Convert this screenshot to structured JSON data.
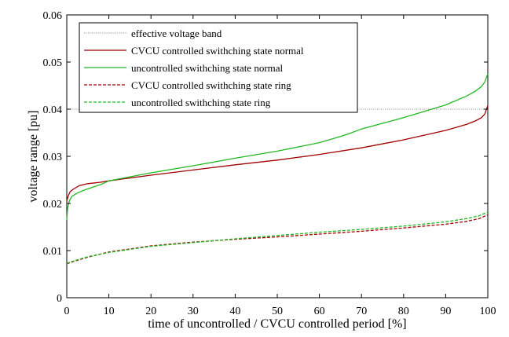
{
  "chart_data": {
    "type": "line",
    "title": "",
    "xlabel": "time of uncontrolled / CVCU controlled period [%]",
    "ylabel": "voltage range [pu]",
    "xlim": [
      0,
      100
    ],
    "ylim": [
      0,
      0.06
    ],
    "xticks": [
      0,
      10,
      20,
      30,
      40,
      50,
      60,
      70,
      80,
      90,
      100
    ],
    "xtick_labels": [
      "0",
      "10",
      "20",
      "30",
      "40",
      "50",
      "60",
      "70",
      "80",
      "90",
      "100"
    ],
    "yticks": [
      0,
      0.01,
      0.02,
      0.03,
      0.04,
      0.05,
      0.06
    ],
    "ytick_labels": [
      "0",
      "0.01",
      "0.02",
      "0.03",
      "0.04",
      "0.05",
      "0.06"
    ],
    "grid": false,
    "legend_position": "top-left",
    "series": [
      {
        "name": "effective voltage band",
        "color": "#7f7f7f",
        "dash": "dotted",
        "x": [
          0,
          100
        ],
        "y": [
          0.04,
          0.04
        ]
      },
      {
        "name": "CVCU controlled swithching state normal",
        "color": "#a00000",
        "dash": "solid",
        "x": [
          0,
          0.3,
          0.8,
          1.5,
          3,
          5,
          8,
          10,
          20,
          30,
          40,
          50,
          60,
          70,
          80,
          90,
          95,
          97,
          98.5,
          99.3,
          100
        ],
        "y": [
          0.0205,
          0.0215,
          0.0225,
          0.023,
          0.0238,
          0.0242,
          0.0245,
          0.0248,
          0.026,
          0.0271,
          0.0282,
          0.0292,
          0.0304,
          0.0318,
          0.0335,
          0.0355,
          0.0368,
          0.0375,
          0.0382,
          0.039,
          0.0408
        ]
      },
      {
        "name": "uncontrolled swithching state normal",
        "color": "#22b822",
        "dash": "solid",
        "x": [
          0,
          0.2,
          0.6,
          1.2,
          2.5,
          4,
          6,
          8,
          10,
          20,
          30,
          40,
          50,
          60,
          65,
          67,
          70,
          80,
          90,
          95,
          97,
          98.5,
          99.3,
          100
        ],
        "y": [
          0.0165,
          0.019,
          0.0205,
          0.0215,
          0.0222,
          0.0228,
          0.0234,
          0.024,
          0.0248,
          0.0265,
          0.028,
          0.0296,
          0.0311,
          0.0329,
          0.0342,
          0.0348,
          0.0358,
          0.0382,
          0.0409,
          0.0428,
          0.0438,
          0.0448,
          0.0458,
          0.0475
        ]
      },
      {
        "name": "CVCU controlled swithching state ring",
        "color": "#a00000",
        "dash": "dashed",
        "x": [
          0,
          2,
          5,
          10,
          20,
          30,
          40,
          50,
          60,
          70,
          80,
          90,
          95,
          98,
          100
        ],
        "y": [
          0.0072,
          0.0078,
          0.0086,
          0.0097,
          0.011,
          0.0118,
          0.0124,
          0.0129,
          0.0135,
          0.0141,
          0.0148,
          0.0156,
          0.0162,
          0.0168,
          0.0176
        ]
      },
      {
        "name": "uncontrolled swithching state ring",
        "color": "#22b822",
        "dash": "dashed",
        "x": [
          0,
          2,
          5,
          10,
          20,
          30,
          40,
          50,
          60,
          70,
          80,
          90,
          95,
          98,
          100
        ],
        "y": [
          0.0073,
          0.0079,
          0.0087,
          0.0096,
          0.0109,
          0.0117,
          0.0125,
          0.0132,
          0.0139,
          0.0145,
          0.0152,
          0.0161,
          0.0168,
          0.0174,
          0.0182
        ]
      }
    ]
  }
}
